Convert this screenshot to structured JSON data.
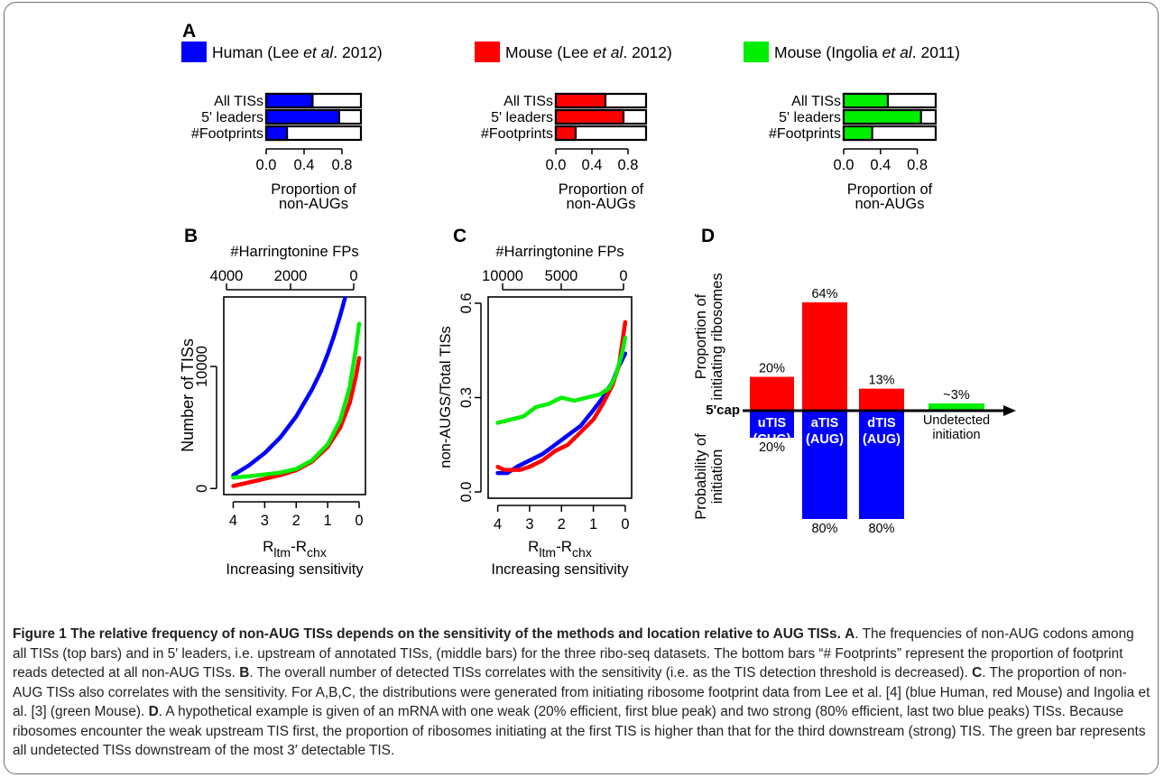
{
  "panel_labels": {
    "A": "A",
    "B": "B",
    "C": "C",
    "D": "D"
  },
  "legend": [
    {
      "prefix": "Human (Lee ",
      "italic": "et al",
      "suffix": ". 2012)",
      "color": "#0000ff"
    },
    {
      "prefix": "Mouse (Lee ",
      "italic": "et al",
      "suffix": ". 2012)",
      "color": "#ff0000"
    },
    {
      "prefix": "Mouse (Ingolia ",
      "italic": "et al",
      "suffix": ". 2011)",
      "color": "#00ee00"
    }
  ],
  "chart_data": [
    {
      "type": "bar",
      "orientation": "horizontal",
      "panel": "A",
      "series_color": "#0000ff",
      "categories": [
        "All TISs",
        "5' leaders",
        "#Footprints"
      ],
      "values": [
        0.49,
        0.77,
        0.22
      ],
      "xlim": [
        0,
        1
      ],
      "xticks": [
        "0.0",
        "0.4",
        "0.8"
      ],
      "xlabel_lines": [
        "Proportion of",
        "non-AUGs"
      ]
    },
    {
      "type": "bar",
      "orientation": "horizontal",
      "panel": "A",
      "series_color": "#ff0000",
      "categories": [
        "All TISs",
        "5' leaders",
        "#Footprints"
      ],
      "values": [
        0.55,
        0.75,
        0.22
      ],
      "xlim": [
        0,
        1
      ],
      "xticks": [
        "0.0",
        "0.4",
        "0.8"
      ],
      "xlabel_lines": [
        "Proportion of",
        "non-AUGs"
      ]
    },
    {
      "type": "bar",
      "orientation": "horizontal",
      "panel": "A",
      "series_color": "#00ee00",
      "categories": [
        "All TISs",
        "5' leaders",
        "#Footprints"
      ],
      "values": [
        0.48,
        0.84,
        0.31
      ],
      "xlim": [
        0,
        1
      ],
      "xticks": [
        "0.0",
        "0.4",
        "0.8"
      ],
      "xlabel_lines": [
        "Proportion of",
        "non-AUGs"
      ]
    },
    {
      "type": "line",
      "panel": "B",
      "top_axis_label": "#Harringtonine FPs",
      "top_ticks": [
        "4000",
        "2000",
        "0"
      ],
      "ylabel": "Number of TISs",
      "yticks": [
        "0",
        "10000"
      ],
      "xticks": [
        "4",
        "3",
        "2",
        "1",
        "0"
      ],
      "xlabel_main": "R",
      "xlabel_sub1": "ltm",
      "xlabel_mid": "-R",
      "xlabel_sub2": "chx",
      "xlabel2": "Increasing sensitivity",
      "xlim": [
        4.3,
        -0.2
      ],
      "ylim": [
        -500,
        15700
      ],
      "series": [
        {
          "color": "#0000ff",
          "x": [
            4.0,
            3.5,
            3.0,
            2.5,
            2.0,
            1.5,
            1.2,
            1.0,
            0.8,
            0.6,
            0.45
          ],
          "y": [
            1100,
            1900,
            2900,
            4200,
            5900,
            8100,
            9700,
            11000,
            12500,
            14200,
            15600
          ]
        },
        {
          "color": "#ff0000",
          "x": [
            4.0,
            3.5,
            3.0,
            2.5,
            2.0,
            1.5,
            1.0,
            0.6,
            0.3,
            0.1,
            0.0
          ],
          "y": [
            200,
            500,
            800,
            1100,
            1500,
            2200,
            3400,
            5000,
            7000,
            9200,
            10700
          ]
        },
        {
          "color": "#00ee00",
          "x": [
            4.0,
            3.5,
            3.0,
            2.5,
            2.0,
            1.5,
            1.0,
            0.6,
            0.3,
            0.1,
            0.0
          ],
          "y": [
            900,
            1000,
            1150,
            1300,
            1600,
            2300,
            3600,
            5600,
            8300,
            11500,
            13500
          ]
        }
      ]
    },
    {
      "type": "line",
      "panel": "C",
      "top_axis_label": "#Harringtonine FPs",
      "top_ticks": [
        "10000",
        "5000",
        "0"
      ],
      "ylabel": "non-AUGS/Total TISs",
      "yticks": [
        "0.0",
        "0.3",
        "0.6"
      ],
      "xticks": [
        "4",
        "3",
        "2",
        "1",
        "0"
      ],
      "xlabel_main": "R",
      "xlabel_sub1": "ltm",
      "xlabel_mid": "-R",
      "xlabel_sub2": "chx",
      "xlabel2": "Increasing sensitivity",
      "xlim": [
        4.3,
        -0.2
      ],
      "ylim": [
        -0.02,
        0.62
      ],
      "series": [
        {
          "color": "#0000ff",
          "x": [
            4.0,
            3.7,
            3.4,
            3.0,
            2.6,
            2.2,
            1.8,
            1.4,
            1.0,
            0.7,
            0.4,
            0.2,
            0.0
          ],
          "y": [
            0.06,
            0.06,
            0.08,
            0.1,
            0.12,
            0.15,
            0.18,
            0.21,
            0.26,
            0.3,
            0.35,
            0.4,
            0.44
          ]
        },
        {
          "color": "#ff0000",
          "x": [
            4.0,
            3.8,
            3.6,
            3.3,
            3.0,
            2.6,
            2.2,
            1.8,
            1.4,
            1.0,
            0.7,
            0.4,
            0.2,
            0.1,
            0.0
          ],
          "y": [
            0.08,
            0.07,
            0.07,
            0.07,
            0.08,
            0.1,
            0.13,
            0.15,
            0.19,
            0.23,
            0.28,
            0.34,
            0.4,
            0.47,
            0.54
          ]
        },
        {
          "color": "#00ee00",
          "x": [
            4.0,
            3.6,
            3.2,
            2.8,
            2.4,
            2.0,
            1.6,
            1.2,
            0.8,
            0.5,
            0.3,
            0.1,
            0.0
          ],
          "y": [
            0.22,
            0.23,
            0.24,
            0.27,
            0.28,
            0.3,
            0.29,
            0.3,
            0.31,
            0.33,
            0.37,
            0.44,
            0.49
          ]
        }
      ]
    },
    {
      "type": "bar",
      "panel": "D",
      "upper_label_lines": [
        "Proportion of",
        "initiating ribosomes"
      ],
      "lower_label_lines": [
        "Probability of",
        "initiation"
      ],
      "axis_label": "5'cap",
      "bars": [
        {
          "top_pct": "20%",
          "top_value": 20,
          "box_lines": [
            "uTIS",
            "(CUG)"
          ],
          "bottom_pct": "20%",
          "bottom_value": 20
        },
        {
          "top_pct": "64%",
          "top_value": 64,
          "box_lines": [
            "aTIS",
            "(AUG)"
          ],
          "bottom_pct": "80%",
          "bottom_value": 80
        },
        {
          "top_pct": "13%",
          "top_value": 13,
          "box_lines": [
            "dTIS",
            "(AUG)"
          ],
          "bottom_pct": "80%",
          "bottom_value": 80
        },
        {
          "top_pct": "~3%",
          "top_value": 3,
          "label_lines": [
            "Undetected",
            "initiation"
          ]
        }
      ]
    }
  ],
  "caption": {
    "head": "Figure 1 The relative frequency of non-AUG TISs depends on the sensitivity of the methods and location relative to AUG TISs.",
    "a_label": "A",
    "a_text": ". The frequencies of non-AUG codons among all TISs (top bars) and in 5′ leaders, i.e. upstream of annotated TISs, (middle bars) for the three ribo-seq datasets. The bottom bars “# Footprints” represent the proportion of footprint reads detected at all non-AUG TISs. ",
    "b_label": "B",
    "b_text": ". The overall number of detected TISs correlates with the sensitivity (i.e. as the TIS detection threshold is decreased). ",
    "c_label": "C",
    "c_text": ". The proportion of non-AUG TISs also correlates with the sensitivity. For A,B,C, the distributions were generated from initiating ribosome footprint data from Lee et al. [4] (blue Human, red Mouse) and Ingolia et al. [3] (green Mouse). ",
    "d_label": "D",
    "d_text": ". A hypothetical example is given of an mRNA with one weak (20% efficient, first blue peak) and two strong (80% efficient, last two blue peaks) TISs. Because ribosomes encounter the weak upstream TIS first, the proportion of ribosomes initiating at the first TIS is higher than that for the third downstream (strong) TIS. The green bar represents all undetected TISs downstream of the most 3′ detectable TIS."
  }
}
